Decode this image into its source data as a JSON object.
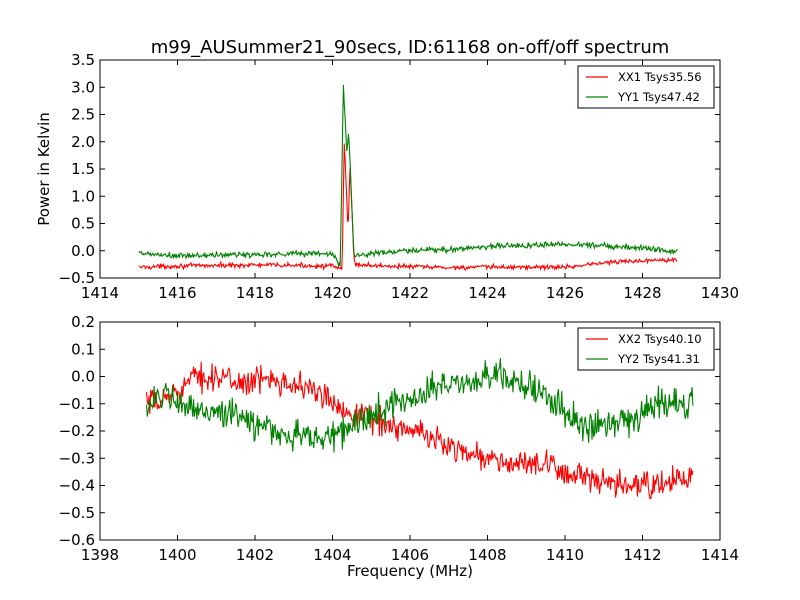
{
  "figure": {
    "title": "m99_AUSummer21_90secs, ID:61168 on-off/off spectrum"
  },
  "chart_data": [
    {
      "type": "line",
      "title": "m99_AUSummer21_90secs, ID:61168 on-off/off spectrum",
      "xlabel": "",
      "ylabel": "Power in Kelvin",
      "xlim": [
        1414,
        1430
      ],
      "ylim": [
        -0.5,
        3.5
      ],
      "xticks": [
        "1414",
        "1416",
        "1418",
        "1420",
        "1422",
        "1424",
        "1426",
        "1428",
        "1430"
      ],
      "yticks": [
        "−0.5",
        "0.0",
        "0.5",
        "1.0",
        "1.5",
        "2.0",
        "2.5",
        "3.0",
        "3.5"
      ],
      "grid": false,
      "legend_position": "top-right",
      "series": [
        {
          "name": "XX1 Tsys35.56",
          "color": "#ff0000",
          "x": [
            1415.0,
            1416.0,
            1417.0,
            1418.0,
            1419.0,
            1420.0,
            1420.25,
            1420.3,
            1420.35,
            1420.4,
            1420.45,
            1420.5,
            1420.55,
            1420.6,
            1421.0,
            1422.0,
            1423.0,
            1424.0,
            1425.0,
            1426.0,
            1427.0,
            1428.0,
            1428.9
          ],
          "y": [
            -0.3,
            -0.28,
            -0.27,
            -0.26,
            -0.27,
            -0.28,
            -0.35,
            2.0,
            1.3,
            0.3,
            1.55,
            0.8,
            -0.1,
            -0.25,
            -0.27,
            -0.29,
            -0.31,
            -0.3,
            -0.3,
            -0.3,
            -0.22,
            -0.18,
            -0.15
          ],
          "noise": 0.03
        },
        {
          "name": "YY1 Tsys47.42",
          "color": "#008000",
          "x": [
            1415.0,
            1416.0,
            1417.0,
            1418.0,
            1419.0,
            1420.0,
            1420.2,
            1420.28,
            1420.32,
            1420.37,
            1420.42,
            1420.48,
            1420.55,
            1420.6,
            1421.0,
            1422.0,
            1423.0,
            1424.0,
            1425.0,
            1426.0,
            1427.0,
            1428.0,
            1428.9
          ],
          "y": [
            -0.05,
            -0.1,
            -0.08,
            -0.07,
            -0.05,
            -0.05,
            -0.3,
            3.0,
            2.5,
            1.8,
            2.2,
            1.2,
            -0.05,
            -0.1,
            -0.05,
            0.0,
            0.02,
            0.08,
            0.1,
            0.12,
            0.1,
            0.05,
            0.0
          ],
          "noise": 0.04
        }
      ]
    },
    {
      "type": "line",
      "title": "",
      "xlabel": "Frequency (MHz)",
      "ylabel": "",
      "xlim": [
        1398,
        1414
      ],
      "ylim": [
        -0.6,
        0.2
      ],
      "xticks": [
        "1398",
        "1400",
        "1402",
        "1404",
        "1406",
        "1408",
        "1410",
        "1412",
        "1414"
      ],
      "yticks": [
        "−0.6",
        "−0.5",
        "−0.4",
        "−0.3",
        "−0.2",
        "−0.1",
        "0.0",
        "0.1",
        "0.2"
      ],
      "grid": false,
      "legend_position": "top-right",
      "series": [
        {
          "name": "XX2 Tsys40.10",
          "color": "#ff0000",
          "x": [
            1399.2,
            1399.5,
            1400.0,
            1400.5,
            1401.0,
            1401.5,
            1402.0,
            1402.5,
            1403.0,
            1403.5,
            1404.0,
            1404.5,
            1405.0,
            1405.5,
            1406.0,
            1406.5,
            1407.0,
            1407.5,
            1408.0,
            1408.5,
            1409.0,
            1409.5,
            1410.0,
            1410.5,
            1411.0,
            1411.5,
            1412.0,
            1412.5,
            1413.0,
            1413.3
          ],
          "y": [
            -0.1,
            -0.1,
            -0.05,
            0.0,
            0.0,
            -0.02,
            -0.02,
            0.0,
            -0.03,
            -0.05,
            -0.1,
            -0.13,
            -0.15,
            -0.18,
            -0.2,
            -0.22,
            -0.25,
            -0.28,
            -0.3,
            -0.32,
            -0.32,
            -0.33,
            -0.35,
            -0.37,
            -0.4,
            -0.4,
            -0.4,
            -0.4,
            -0.37,
            -0.37
          ],
          "noise": 0.035
        },
        {
          "name": "YY2 Tsys41.31",
          "color": "#008000",
          "x": [
            1399.2,
            1399.5,
            1400.0,
            1400.5,
            1401.0,
            1401.5,
            1402.0,
            1402.5,
            1403.0,
            1403.5,
            1404.0,
            1404.5,
            1405.0,
            1405.5,
            1406.0,
            1406.5,
            1407.0,
            1407.5,
            1408.0,
            1408.5,
            1409.0,
            1409.5,
            1410.0,
            1410.5,
            1411.0,
            1411.5,
            1412.0,
            1412.5,
            1413.0,
            1413.3
          ],
          "y": [
            -0.1,
            -0.07,
            -0.1,
            -0.13,
            -0.12,
            -0.15,
            -0.17,
            -0.2,
            -0.22,
            -0.22,
            -0.22,
            -0.18,
            -0.15,
            -0.1,
            -0.08,
            -0.05,
            -0.03,
            -0.02,
            0.0,
            0.0,
            -0.03,
            -0.08,
            -0.13,
            -0.18,
            -0.18,
            -0.15,
            -0.13,
            -0.1,
            -0.1,
            -0.1
          ],
          "noise": 0.04
        }
      ]
    }
  ]
}
